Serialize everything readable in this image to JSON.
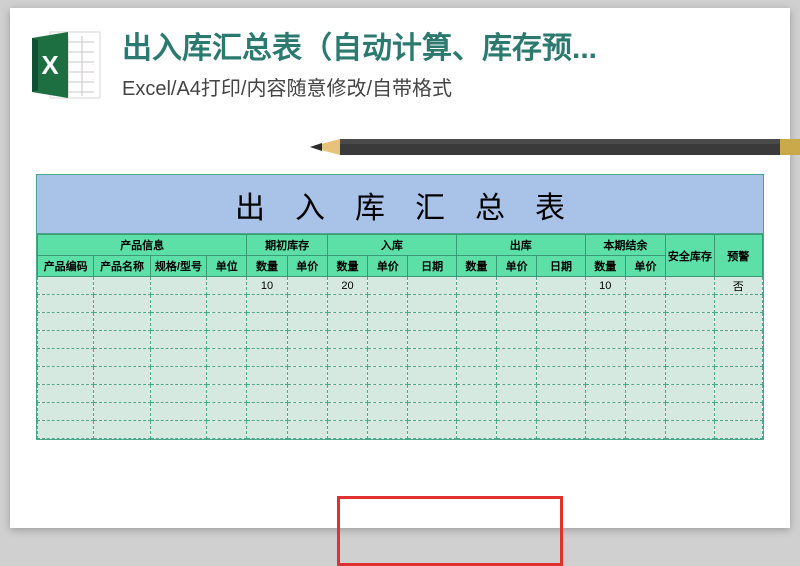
{
  "header": {
    "title": "出入库汇总表（自动计算、库存预...",
    "subtitle": "Excel/A4打印/内容随意修改/自带格式"
  },
  "sheet": {
    "title": "出入库汇总表",
    "group_headers": [
      {
        "label": "产品信息",
        "span": 4
      },
      {
        "label": "期初库存",
        "span": 2
      },
      {
        "label": "入库",
        "span": 3
      },
      {
        "label": "出库",
        "span": 3
      },
      {
        "label": "本期结余",
        "span": 2
      },
      {
        "label": "安全库存",
        "span": 1,
        "rowspan": 2
      },
      {
        "label": "预警",
        "span": 1,
        "rowspan": 2
      }
    ],
    "sub_headers": [
      "产品编码",
      "产品名称",
      "规格/型号",
      "单位",
      "数量",
      "单价",
      "数量",
      "单价",
      "日期",
      "数量",
      "单价",
      "日期",
      "数量",
      "单价"
    ],
    "col_widths_pct": [
      7,
      7,
      7,
      5,
      5,
      5,
      5,
      5,
      6,
      5,
      5,
      6,
      5,
      5,
      6,
      6
    ],
    "rows": [
      [
        "",
        "",
        "",
        "",
        "10",
        "",
        "20",
        "",
        "",
        "",
        "",
        "",
        "10",
        "",
        "",
        "否"
      ],
      [
        "",
        "",
        "",
        "",
        "",
        "",
        "",
        "",
        "",
        "",
        "",
        "",
        "",
        "",
        "",
        ""
      ],
      [
        "",
        "",
        "",
        "",
        "",
        "",
        "",
        "",
        "",
        "",
        "",
        "",
        "",
        "",
        "",
        ""
      ],
      [
        "",
        "",
        "",
        "",
        "",
        "",
        "",
        "",
        "",
        "",
        "",
        "",
        "",
        "",
        "",
        ""
      ],
      [
        "",
        "",
        "",
        "",
        "",
        "",
        "",
        "",
        "",
        "",
        "",
        "",
        "",
        "",
        "",
        ""
      ],
      [
        "",
        "",
        "",
        "",
        "",
        "",
        "",
        "",
        "",
        "",
        "",
        "",
        "",
        "",
        "",
        ""
      ],
      [
        "",
        "",
        "",
        "",
        "",
        "",
        "",
        "",
        "",
        "",
        "",
        "",
        "",
        "",
        "",
        ""
      ],
      [
        "",
        "",
        "",
        "",
        "",
        "",
        "",
        "",
        "",
        "",
        "",
        "",
        "",
        "",
        "",
        ""
      ],
      [
        "",
        "",
        "",
        "",
        "",
        "",
        "",
        "",
        "",
        "",
        "",
        "",
        "",
        "",
        "",
        ""
      ]
    ]
  },
  "colors": {
    "title_color": "#2c7a6f",
    "sheet_title_bg": "#a9c3e8",
    "header_bg": "#5ce0a8",
    "body_bg": "#d5e9e0",
    "grid_color": "#4aa88a",
    "redbox": "#e03030",
    "page_bg": "#ffffff",
    "canvas_bg": "#d0d0d0",
    "excel_green": "#1d6f42",
    "excel_dark": "#0e5132",
    "pencil_body": "#3a3a3a",
    "pencil_tip_wood": "#e6c27a",
    "pencil_lead": "#2a2a2a",
    "pencil_ferrule": "#c9a94a",
    "pencil_eraser": "#d9b9a8"
  }
}
